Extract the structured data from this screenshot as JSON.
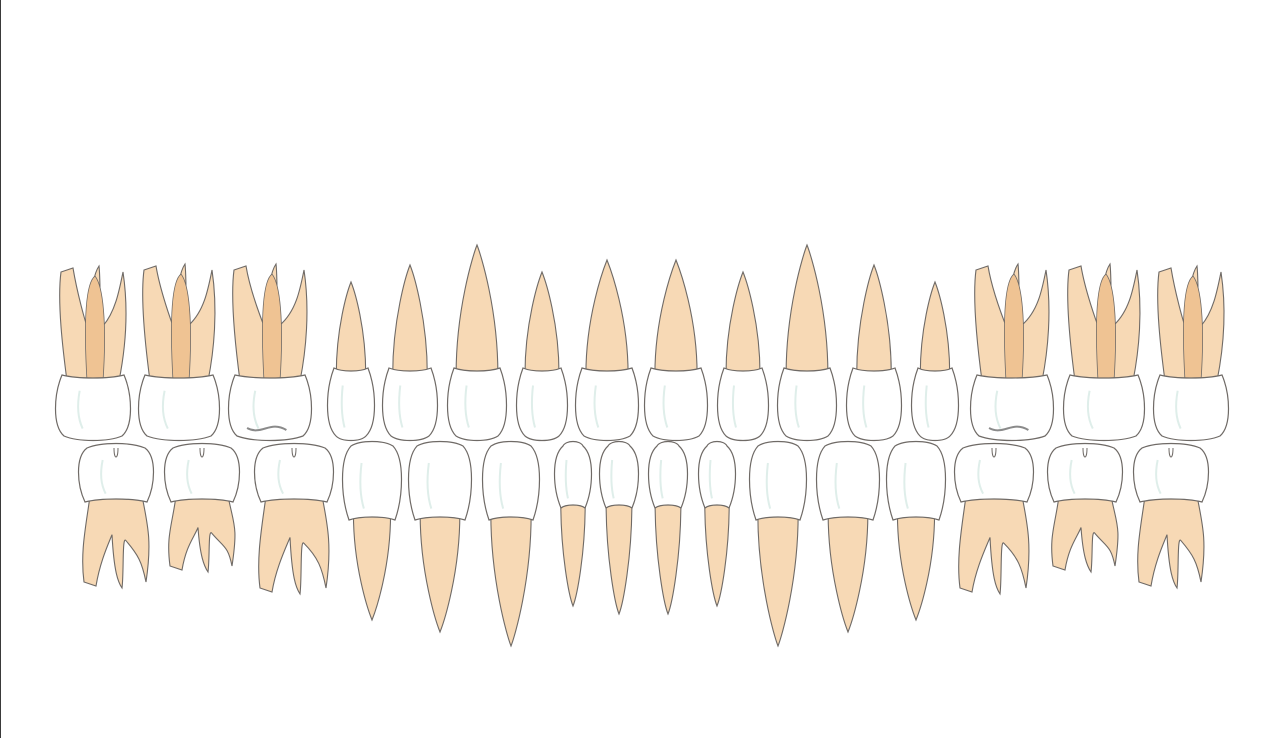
{
  "colors": {
    "background": "#ffffff",
    "root_fill": "#f7d9b5",
    "root_shade": "#efc393",
    "root_stroke": "#6f6a66",
    "crown_fill": "#ffffff",
    "crown_stroke": "#6f6a66",
    "crown_tint": "#dfeeea",
    "edge": "#3a3a3a"
  },
  "upper_arch": [
    {
      "type": "molar"
    },
    {
      "type": "molar"
    },
    {
      "type": "molar"
    },
    {
      "type": "premolar"
    },
    {
      "type": "premolar"
    },
    {
      "type": "canine"
    },
    {
      "type": "lateral-incisor"
    },
    {
      "type": "central-incisor"
    },
    {
      "type": "central-incisor"
    },
    {
      "type": "lateral-incisor"
    },
    {
      "type": "canine"
    },
    {
      "type": "premolar"
    },
    {
      "type": "premolar"
    },
    {
      "type": "molar"
    },
    {
      "type": "molar"
    },
    {
      "type": "molar"
    }
  ],
  "lower_arch": [
    {
      "type": "molar"
    },
    {
      "type": "molar"
    },
    {
      "type": "molar"
    },
    {
      "type": "premolar"
    },
    {
      "type": "premolar"
    },
    {
      "type": "canine"
    },
    {
      "type": "lateral-incisor"
    },
    {
      "type": "central-incisor"
    },
    {
      "type": "central-incisor"
    },
    {
      "type": "lateral-incisor"
    },
    {
      "type": "canine"
    },
    {
      "type": "premolar"
    },
    {
      "type": "premolar"
    },
    {
      "type": "molar"
    },
    {
      "type": "molar"
    },
    {
      "type": "molar"
    }
  ]
}
